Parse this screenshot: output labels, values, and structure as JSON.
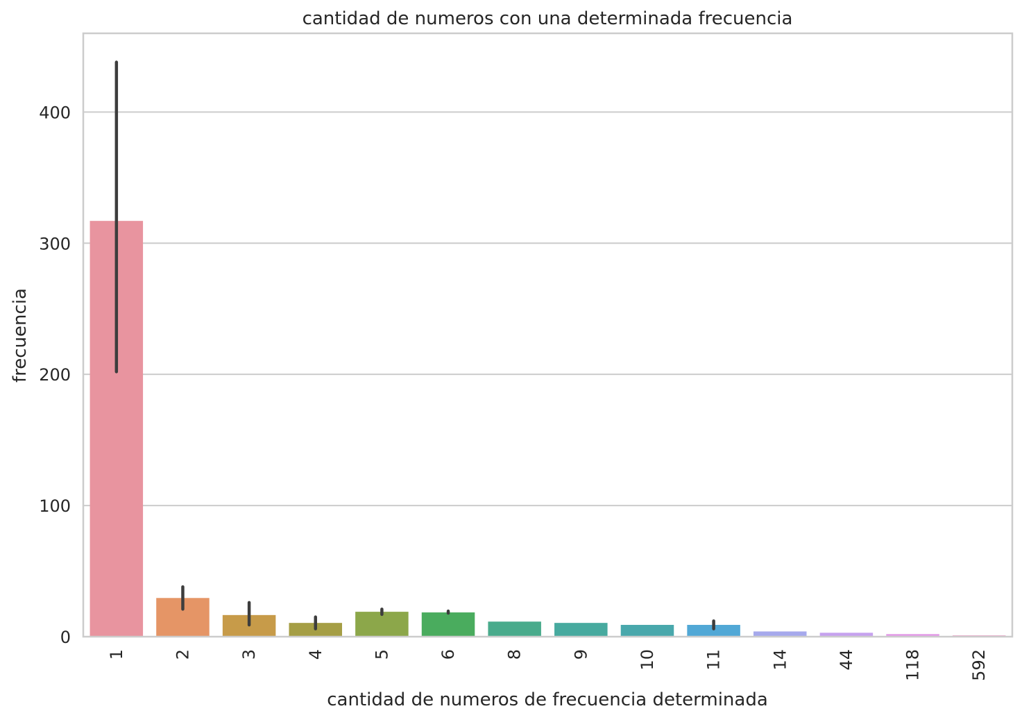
{
  "chart_data": {
    "type": "bar",
    "title": "cantidad de numeros con una determinada frecuencia",
    "xlabel": "cantidad de numeros de frecuencia determinada",
    "ylabel": "frecuencia",
    "categories": [
      "1",
      "2",
      "3",
      "4",
      "5",
      "6",
      "8",
      "9",
      "10",
      "11",
      "14",
      "44",
      "118",
      "592"
    ],
    "values": [
      317,
      29.5,
      16.5,
      10.5,
      19,
      18.5,
      11.5,
      10.5,
      9,
      9,
      4,
      3,
      2,
      1
    ],
    "error_low": [
      202,
      21,
      9,
      6,
      17,
      18,
      null,
      null,
      null,
      6,
      null,
      null,
      null,
      null
    ],
    "error_high": [
      438,
      38,
      26,
      15,
      21,
      19.5,
      null,
      null,
      null,
      12,
      null,
      null,
      null,
      null
    ],
    "colors": [
      "#e8949f",
      "#e59566",
      "#c79b49",
      "#a59e45",
      "#8ca74a",
      "#4aac5e",
      "#49ab8c",
      "#47aa9f",
      "#49a8ac",
      "#51a8d6",
      "#a6a9ec",
      "#c6a2ef",
      "#e39be8",
      "#e89dc4"
    ],
    "ylim": [
      0,
      460
    ],
    "yticks": [
      0,
      100,
      200,
      300,
      400
    ],
    "grid": true,
    "xtick_rotation": "vertical"
  }
}
